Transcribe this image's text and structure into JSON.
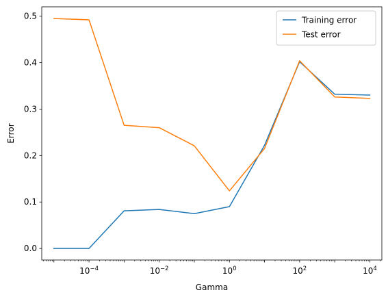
{
  "chart_data": {
    "type": "line",
    "xlabel": "Gamma",
    "ylabel": "Error",
    "x_scale": "log",
    "x": [
      1e-05,
      0.0001,
      0.001,
      0.01,
      0.1,
      1,
      10,
      100,
      1000,
      10000
    ],
    "xlim": [
      4.5e-06,
      22000
    ],
    "ylim": [
      -0.0248,
      0.52
    ],
    "x_ticks": [
      {
        "value": 0.0001,
        "base": "10",
        "exp": "−4"
      },
      {
        "value": 0.01,
        "base": "10",
        "exp": "−2"
      },
      {
        "value": 1,
        "base": "10",
        "exp": "0"
      },
      {
        "value": 100,
        "base": "10",
        "exp": "2"
      },
      {
        "value": 10000,
        "base": "10",
        "exp": "4"
      }
    ],
    "y_ticks": [
      {
        "value": 0.0,
        "label": "0.0"
      },
      {
        "value": 0.1,
        "label": "0.1"
      },
      {
        "value": 0.2,
        "label": "0.2"
      },
      {
        "value": 0.3,
        "label": "0.3"
      },
      {
        "value": 0.4,
        "label": "0.4"
      },
      {
        "value": 0.5,
        "label": "0.5"
      }
    ],
    "grid": false,
    "legend_position": "top-right",
    "series": [
      {
        "name": "Training error",
        "color": "#1f77b4",
        "values": [
          0.0,
          0.0,
          0.081,
          0.084,
          0.075,
          0.09,
          0.222,
          0.402,
          0.332,
          0.33
        ]
      },
      {
        "name": "Test error",
        "color": "#ff7f0e",
        "values": [
          0.495,
          0.492,
          0.265,
          0.26,
          0.221,
          0.124,
          0.215,
          0.404,
          0.326,
          0.323
        ]
      }
    ]
  }
}
